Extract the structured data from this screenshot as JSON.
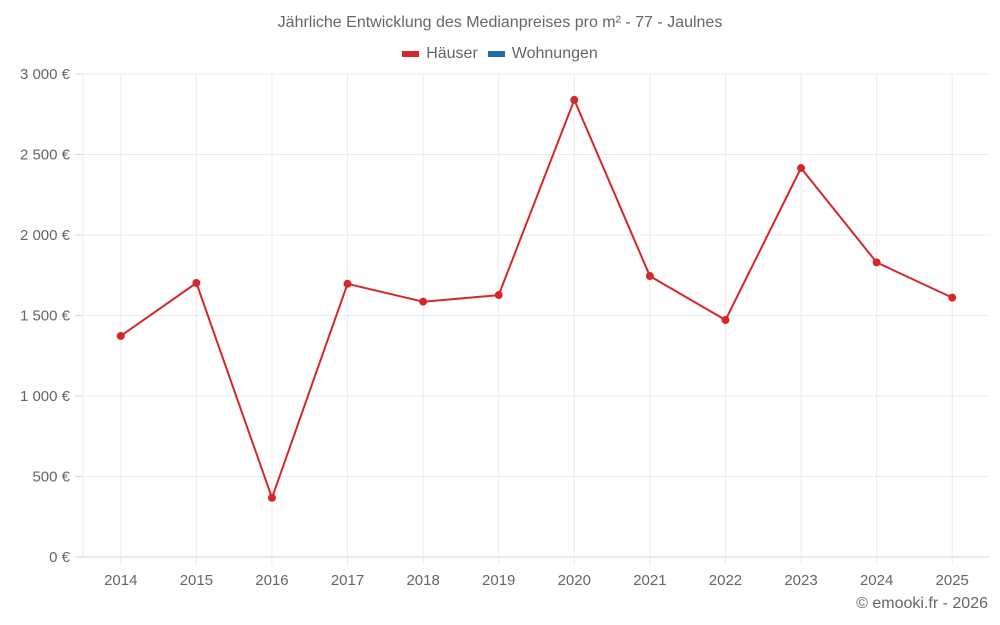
{
  "chart_data": {
    "type": "line",
    "title": "Jährliche Entwicklung des Medianpreises pro m² - 77 - Jaulnes",
    "categories": [
      "2014",
      "2015",
      "2016",
      "2017",
      "2018",
      "2019",
      "2020",
      "2021",
      "2022",
      "2023",
      "2024",
      "2025"
    ],
    "series": [
      {
        "name": "Häuser",
        "color": "#d62728",
        "values": [
          1373,
          1702,
          368,
          1697,
          1586,
          1627,
          2839,
          1745,
          1472,
          2416,
          1830,
          1611
        ]
      },
      {
        "name": "Wohnungen",
        "color": "#1f6ca8",
        "values": []
      }
    ],
    "xlabel": "",
    "ylabel": "",
    "ylim": [
      0,
      3000
    ],
    "yticks": [
      0,
      500,
      1000,
      1500,
      2000,
      2500,
      3000
    ],
    "ytick_labels": [
      "0 €",
      "500 €",
      "1 000 €",
      "1 500 €",
      "2 000 €",
      "2 500 €",
      "3 000 €"
    ],
    "grid": true,
    "legend_position": "top-center"
  },
  "header": {
    "title": "Jährliche Entwicklung des Medianpreises pro m² - 77 - Jaulnes"
  },
  "legend": {
    "items": [
      {
        "label": "Häuser",
        "color": "#d62728"
      },
      {
        "label": "Wohnungen",
        "color": "#1f6ca8"
      }
    ]
  },
  "footer": {
    "credit": "© emooki.fr - 2026"
  }
}
